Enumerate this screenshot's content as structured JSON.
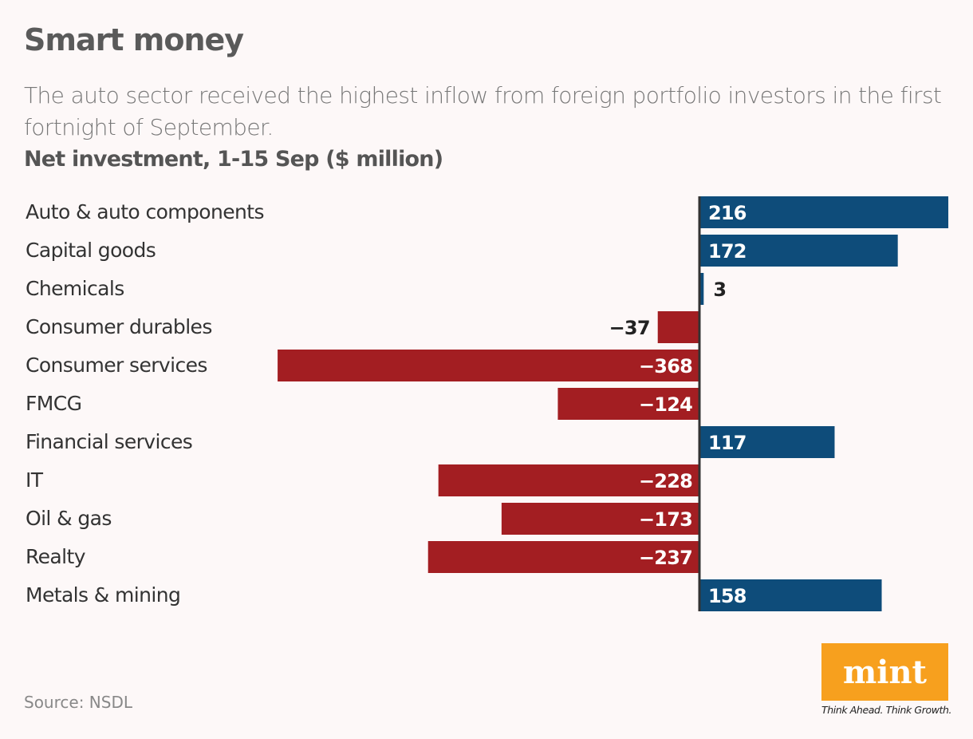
{
  "title": "Smart money",
  "subtitle": "The auto sector received the highest inflow from foreign portfolio investors in the first fortnight of September.",
  "source": "Source: NSDL",
  "logo": {
    "text": "mint",
    "tagline": "Think Ahead. Think Growth."
  },
  "colors": {
    "positive": "#0e4c7a",
    "negative": "#a31e22",
    "axis": "#333333",
    "background": "#fdf8f8"
  },
  "chart_data": {
    "type": "bar",
    "orientation": "horizontal",
    "ylabel": "Net investment, 1-15 Sep ($ million)",
    "categories": [
      "Auto & auto components",
      "Capital goods",
      "Chemicals",
      "Consumer durables",
      "Consumer services",
      "FMCG",
      "Financial services",
      "IT",
      "Oil & gas",
      "Realty",
      "Metals & mining"
    ],
    "values": [
      216,
      172,
      3,
      -37,
      -368,
      -124,
      117,
      -228,
      -173,
      -237,
      158
    ],
    "value_labels": [
      "216",
      "172",
      "3",
      "−37",
      "−368",
      "−124",
      "117",
      "−228",
      "−173",
      "−237",
      "158"
    ],
    "grid": false
  }
}
